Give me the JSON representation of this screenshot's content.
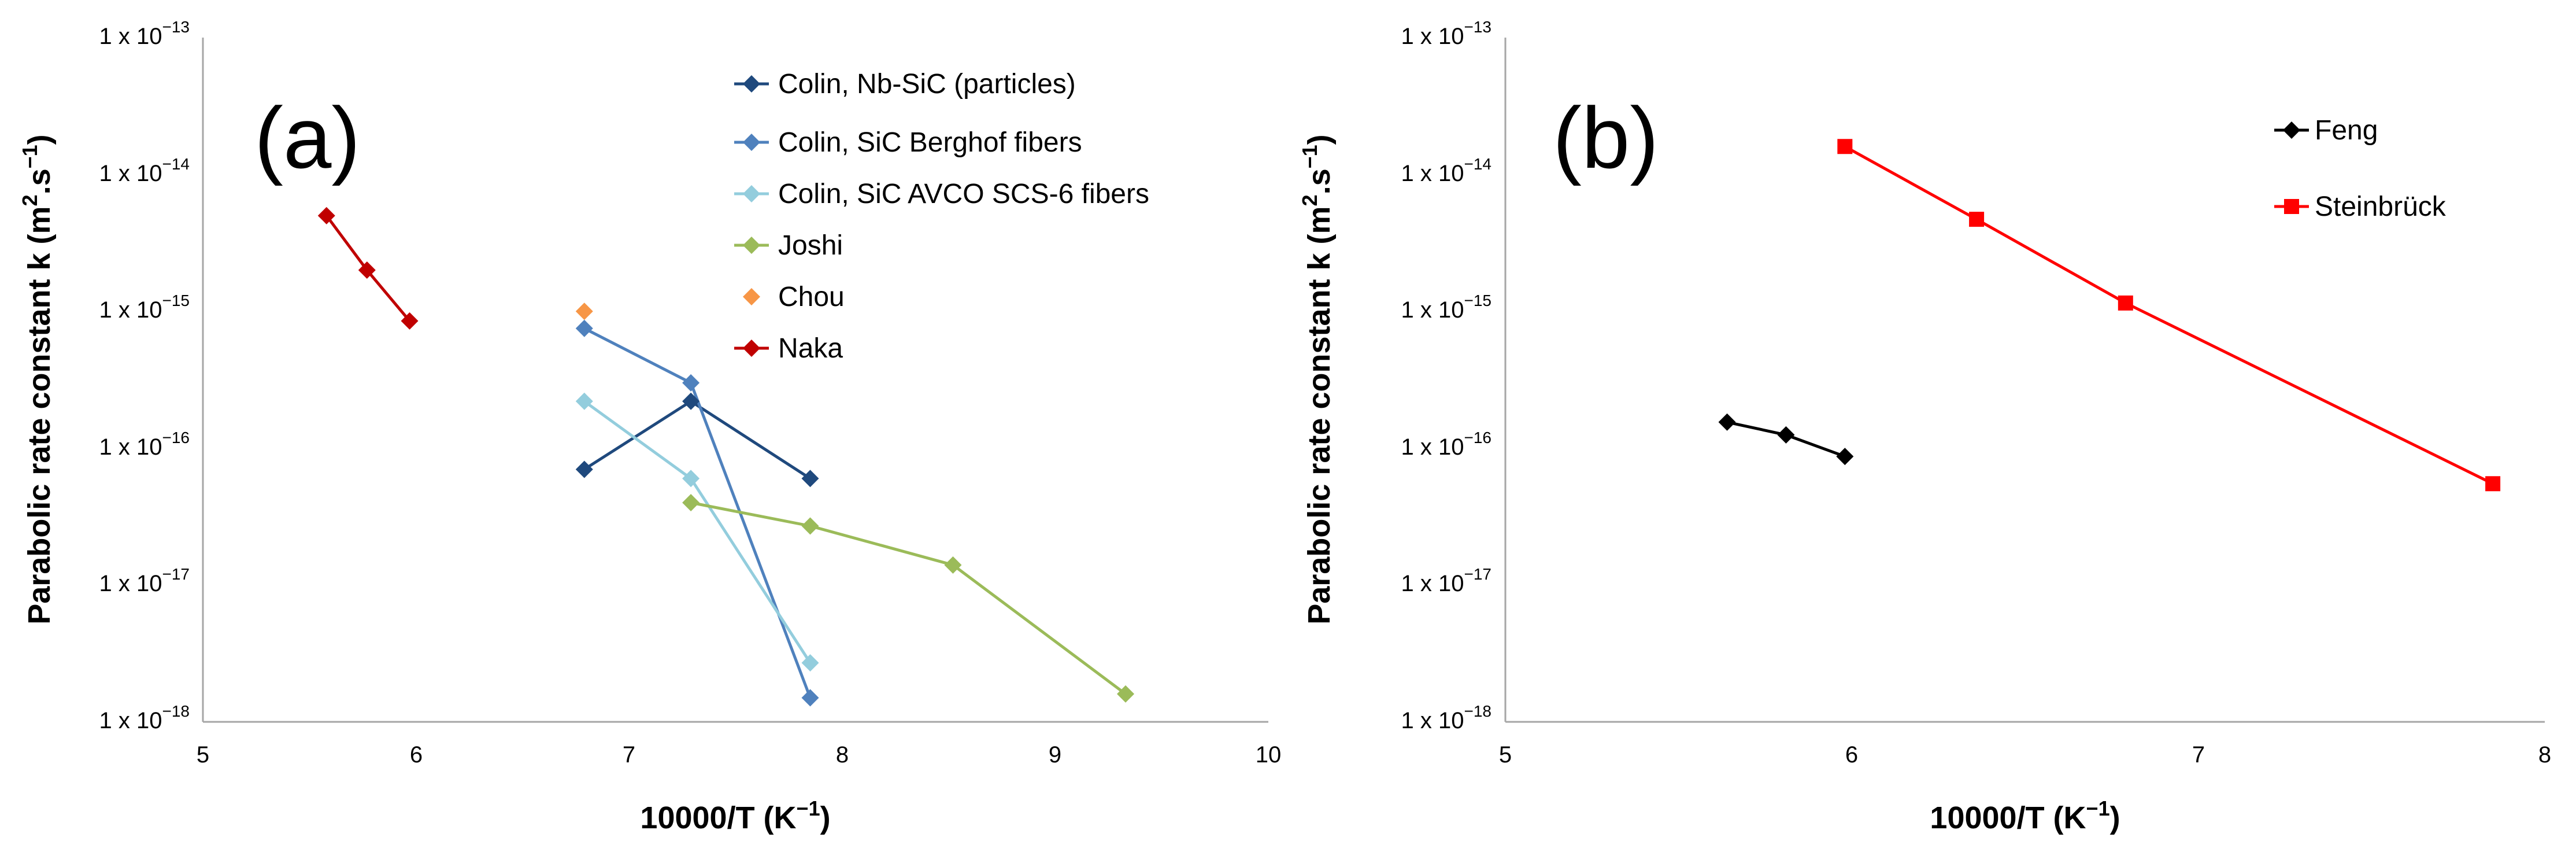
{
  "chart_data": [
    {
      "type": "line",
      "panel_label": "(a)",
      "xlabel_main": "10000/T (K",
      "xlabel_exp": "−1",
      "xlabel_close": ")",
      "ylabel_main": "Parabolic rate constant k (m",
      "ylabel_sq": "2",
      "ylabel_mid": ".s",
      "ylabel_exp": "−1",
      "ylabel_close": ")",
      "xlim": [
        5,
        10
      ],
      "x_ticks": [
        "5",
        "6",
        "7",
        "8",
        "9",
        "10"
      ],
      "y_scale": "log",
      "y_exponents": [
        -18,
        -17,
        -16,
        -15,
        -14,
        -13
      ],
      "y_tick_base": "1 x 10",
      "y_tick_exps": [
        "−18",
        "−17",
        "−16",
        "−15",
        "−14",
        "−13"
      ],
      "legend_position": "top-right",
      "series": [
        {
          "name": "Colin, Nb-SiC (particles)",
          "color": "#1f497d",
          "marker": "diamond",
          "x": [
            6.79,
            7.29,
            7.85
          ],
          "y": [
            7e-17,
            2.2e-16,
            6e-17
          ],
          "legend": true
        },
        {
          "name": "Colin, SiC Berghof fibers",
          "color": "#4f81bd",
          "marker": "diamond",
          "x": [
            6.79,
            7.29,
            7.85
          ],
          "y": [
            7.5e-16,
            3e-16,
            1.5e-18
          ],
          "legend": true
        },
        {
          "name": "Colin, SiC AVCO SCS-6 fibers",
          "color": "#93cddd",
          "marker": "diamond",
          "x": [
            6.79,
            7.29,
            7.85
          ],
          "y": [
            2.2e-16,
            6e-17,
            2.7e-18
          ],
          "legend": true
        },
        {
          "name": "Joshi",
          "color": "#9bbb59",
          "marker": "diamond",
          "x": [
            7.29,
            7.85,
            8.52,
            9.33
          ],
          "y": [
            4e-17,
            2.7e-17,
            1.4e-17,
            1.6e-18
          ],
          "legend": true
        },
        {
          "name": "Chou",
          "color": "#f79646",
          "marker": "diamond",
          "x": [
            6.79
          ],
          "y": [
            1e-15
          ],
          "legend": true
        },
        {
          "name": "Naka",
          "color": "#c00000",
          "marker": "diamond",
          "x": [
            5.58,
            5.77,
            5.97
          ],
          "y": [
            5e-15,
            2e-15,
            8.5e-16
          ],
          "legend": true
        }
      ]
    },
    {
      "type": "line",
      "panel_label": "(b)",
      "xlabel_main": "10000/T (K",
      "xlabel_exp": "−1",
      "xlabel_close": ")",
      "ylabel_main": "Parabolic rate constant k (m",
      "ylabel_sq": "2",
      "ylabel_mid": ".s",
      "ylabel_exp": "−1",
      "ylabel_close": ")",
      "xlim": [
        5,
        8
      ],
      "x_ticks": [
        "5",
        "6",
        "7",
        "8"
      ],
      "y_scale": "log",
      "y_exponents": [
        -18,
        -17,
        -16,
        -15,
        -14,
        -13
      ],
      "y_tick_base": "1 x 10",
      "y_tick_exps": [
        "−18",
        "−17",
        "−16",
        "−15",
        "−14",
        "−13"
      ],
      "legend_position": "top-right",
      "series": [
        {
          "name": "Feng",
          "color": "#000000",
          "marker": "diamond",
          "x": [
            5.64,
            5.81,
            5.98
          ],
          "y": [
            1.55e-16,
            1.25e-16,
            8.7e-17
          ],
          "legend": true
        },
        {
          "name": "Steinbrück",
          "color": "#ff0000",
          "marker": "square",
          "x": [
            5.98,
            6.36,
            6.79,
            7.85
          ],
          "y": [
            1.6e-14,
            4.7e-15,
            1.15e-15,
            5.5e-17
          ],
          "legend": true
        }
      ]
    }
  ]
}
